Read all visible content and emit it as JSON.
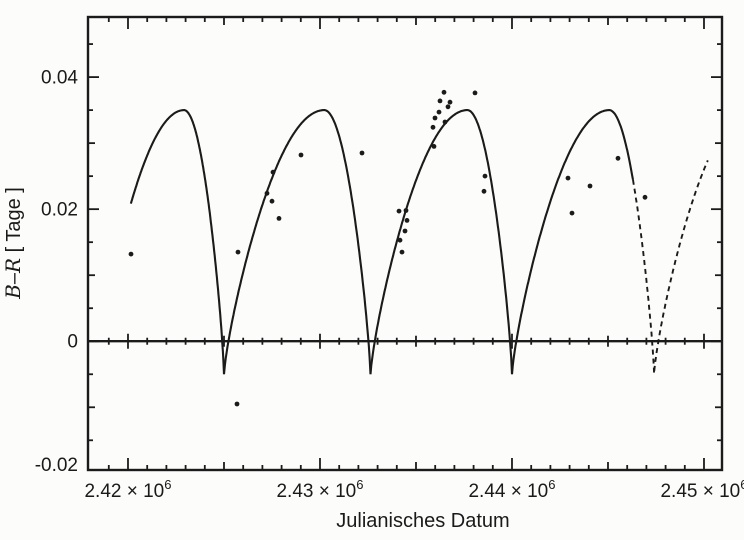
{
  "figure": {
    "title": "",
    "xlabel": "Julianisches Datum",
    "ylabel_b": "B",
    "ylabel_dash": "–",
    "ylabel_r": "R",
    "ylabel_unit": " [ Tage ]",
    "ink": "#1b1b1b",
    "paper": "#fcfcfa"
  },
  "chart_data": {
    "type": "scatter",
    "title": "",
    "xlabel": "Julianisches Datum",
    "ylabel": "B–R [ Tage ]",
    "grid": false,
    "legend": null,
    "xlim": [
      2417917,
      2450938
    ],
    "ylim": [
      -0.0195,
      0.0491
    ],
    "x_major_ticks": [
      2420000,
      2430000,
      2440000,
      2450000
    ],
    "x_tick_labels": [
      {
        "base": "2.42 × 10",
        "exp": "6"
      },
      {
        "base": "2.43 × 10",
        "exp": "6"
      },
      {
        "base": "2.44 × 10",
        "exp": "6"
      },
      {
        "base": "2.45 × 10",
        "exp": "6"
      }
    ],
    "x_minor_step": 1000,
    "x_medium_step": 5000,
    "y_major_ticks": [
      -0.02,
      0,
      0.02,
      0.04
    ],
    "y_tick_labels": [
      "-0.02",
      "0",
      "0.02",
      "0.04"
    ],
    "y_minor_step": 0.005,
    "y_medium_step": 0.01,
    "zero_line": true,
    "curve_model": {
      "description": "periodic skewed light-time curve, maxima ~0.035 d, sharp minima ~-0.005 d",
      "dips": [
        2418400,
        2425000,
        2432630,
        2440000,
        2447400,
        2454800
      ],
      "peak": 0.035,
      "dip_value": -0.005,
      "peak_fraction": 0.685,
      "shape_exponent": 0.78,
      "segments": [
        {
          "from": 2420150,
          "to": 2425000,
          "style": "solid"
        },
        {
          "from": 2425000,
          "to": 2432630,
          "style": "solid"
        },
        {
          "from": 2432630,
          "to": 2440000,
          "style": "solid"
        },
        {
          "from": 2440000,
          "to": 2446300,
          "style": "solid"
        },
        {
          "from": 2446300,
          "to": 2450200,
          "style": "dashed"
        }
      ]
    },
    "points": [
      [
        2420156,
        0.0132
      ],
      [
        2425677,
        -0.0095
      ],
      [
        2425729,
        0.0135
      ],
      [
        2427240,
        0.0224
      ],
      [
        2427500,
        0.0212
      ],
      [
        2427552,
        0.0256
      ],
      [
        2427865,
        0.0186
      ],
      [
        2429010,
        0.0282
      ],
      [
        2432188,
        0.0285
      ],
      [
        2434115,
        0.0197
      ],
      [
        2434167,
        0.0153
      ],
      [
        2434271,
        0.0135
      ],
      [
        2434427,
        0.0167
      ],
      [
        2434479,
        0.0198
      ],
      [
        2434531,
        0.0183
      ],
      [
        2435885,
        0.0324
      ],
      [
        2435937,
        0.0295
      ],
      [
        2435990,
        0.0338
      ],
      [
        2436198,
        0.0347
      ],
      [
        2436250,
        0.0364
      ],
      [
        2436458,
        0.0377
      ],
      [
        2436510,
        0.0332
      ],
      [
        2436667,
        0.0355
      ],
      [
        2436771,
        0.0362
      ],
      [
        2438073,
        0.0376
      ],
      [
        2438542,
        0.0227
      ],
      [
        2438594,
        0.025
      ],
      [
        2442917,
        0.0247
      ],
      [
        2443125,
        0.0194
      ],
      [
        2444063,
        0.0235
      ],
      [
        2445521,
        0.0277
      ],
      [
        2446927,
        0.0218
      ]
    ]
  }
}
